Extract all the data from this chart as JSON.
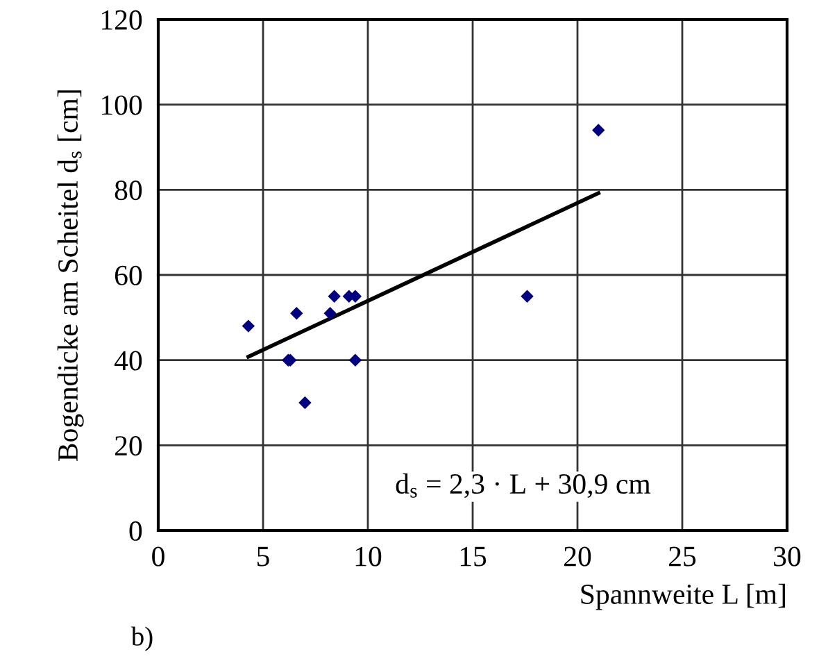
{
  "chart_data": {
    "type": "scatter",
    "xlabel": "Spannweite L [m]",
    "ylabel": "Bogendicke am Scheitel d$_{s}$ [cm]",
    "annotations": [
      "d$_{s}$ = 2,3 · L + 30,9 cm",
      "b)"
    ],
    "xlim": [
      0,
      30
    ],
    "ylim": [
      0,
      120
    ],
    "xticks": [
      0,
      5,
      10,
      15,
      20,
      25,
      30
    ],
    "yticks": [
      0,
      20,
      40,
      60,
      80,
      100,
      120
    ],
    "grid": true,
    "series": [
      {
        "marker": "diamond",
        "color": "#000080",
        "x": [
          4.3,
          6.2,
          6.3,
          6.6,
          7.0,
          8.2,
          8.4,
          9.1,
          9.4,
          9.4,
          17.6,
          21.0
        ],
        "values": [
          48,
          40,
          40,
          51,
          30,
          51,
          55,
          55,
          55,
          40,
          55,
          94
        ]
      },
      {
        "type": "line",
        "marker": "none",
        "line_style": "solid",
        "color": "#000000",
        "x": [
          4.3,
          21.0
        ],
        "values": [
          40.8,
          79.2
        ]
      }
    ]
  }
}
